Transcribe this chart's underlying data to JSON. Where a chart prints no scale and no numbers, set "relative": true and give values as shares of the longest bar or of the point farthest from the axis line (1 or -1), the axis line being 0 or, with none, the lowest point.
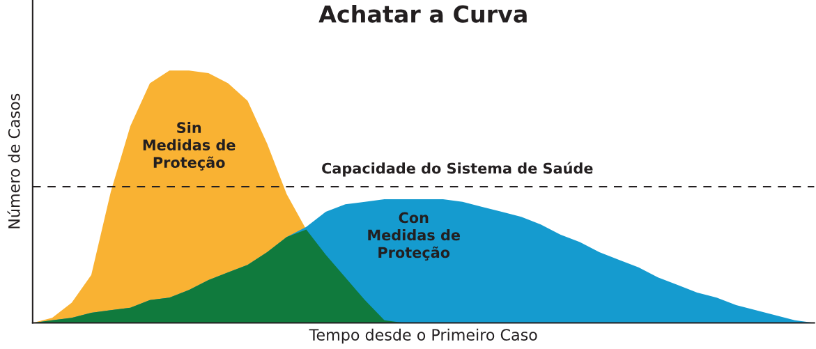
{
  "chart_data": {
    "type": "area",
    "title": "Achatar a Curva",
    "xlabel": "Tempo desde o Primeiro Caso",
    "ylabel": "Número de Casos",
    "relative": true,
    "categories": [
      null,
      null,
      null,
      null,
      null,
      null,
      null,
      null,
      null,
      null,
      null,
      null,
      null,
      null,
      null,
      null,
      null,
      null,
      null,
      null,
      null,
      null,
      null,
      null,
      null,
      null,
      null,
      null,
      null,
      null,
      null,
      null,
      null,
      null,
      null,
      null,
      null,
      null,
      null,
      null,
      null
    ],
    "series": [
      {
        "name": "Sin\nMedidas de\nProteção",
        "color": "#f9b233",
        "values": [
          0,
          0.02,
          0.08,
          0.19,
          0.52,
          0.78,
          0.95,
          1.0,
          1.0,
          0.99,
          0.95,
          0.88,
          0.71,
          0.51,
          0.37,
          null,
          null,
          null,
          null,
          null,
          null,
          null,
          null,
          null,
          null,
          null,
          null,
          null,
          null,
          null,
          null,
          null,
          null,
          null,
          null,
          null,
          null,
          null,
          null,
          null,
          null
        ]
      },
      {
        "name": "Con\nMedidas de\nProteção",
        "color": "#159bcf",
        "values": [
          0,
          0.01,
          0.02,
          0.04,
          0.05,
          0.06,
          0.09,
          0.1,
          0.13,
          0.17,
          0.2,
          0.23,
          0.28,
          0.34,
          0.38,
          0.44,
          0.47,
          0.48,
          0.49,
          0.49,
          0.49,
          0.49,
          0.48,
          0.46,
          0.44,
          0.42,
          0.39,
          0.35,
          0.32,
          0.28,
          0.25,
          0.22,
          0.18,
          0.15,
          0.12,
          0.1,
          0.07,
          0.05,
          0.03,
          0.01,
          0
        ]
      },
      {
        "color": "#107a3d",
        "values": [
          0,
          0.01,
          0.02,
          0.04,
          0.05,
          0.06,
          0.09,
          0.1,
          0.13,
          0.17,
          0.2,
          0.23,
          0.28,
          0.34,
          0.37,
          0.27,
          0.18,
          0.09,
          0.01,
          0,
          0,
          0,
          0,
          0,
          0,
          0,
          0,
          0,
          0,
          0,
          0,
          0,
          0,
          0,
          0,
          0,
          0,
          0,
          0,
          0,
          0
        ]
      }
    ],
    "ref_lines": [
      {
        "axis": "y",
        "value": 0.54,
        "label": "Capacidade do Sistema de Saúde",
        "color": "#231f20",
        "line_style": "dashed"
      }
    ]
  }
}
